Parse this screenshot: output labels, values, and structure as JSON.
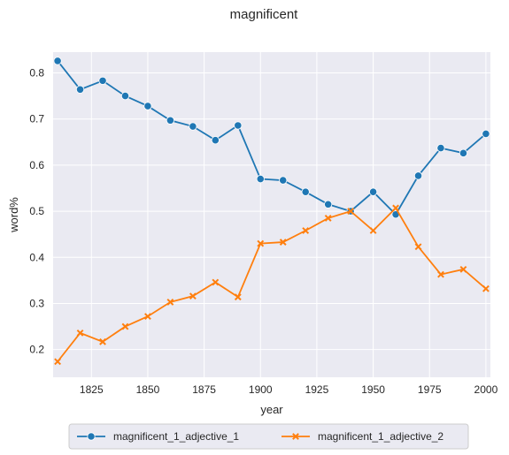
{
  "chart_data": {
    "type": "line",
    "title": "magnificent",
    "xlabel": "year",
    "ylabel": "word%",
    "xlim": [
      1808,
      2002
    ],
    "ylim": [
      0.14,
      0.845
    ],
    "x_ticks": [
      1825,
      1850,
      1875,
      1900,
      1925,
      1950,
      1975,
      2000
    ],
    "y_ticks": [
      0.2,
      0.3,
      0.4,
      0.5,
      0.6,
      0.7,
      0.8
    ],
    "grid": true,
    "background": "#eaeaf2",
    "legend_placement": "bottom-center",
    "x": [
      1810,
      1820,
      1830,
      1840,
      1850,
      1860,
      1870,
      1880,
      1890,
      1900,
      1910,
      1920,
      1930,
      1940,
      1950,
      1960,
      1970,
      1980,
      1990,
      2000
    ],
    "series": [
      {
        "name": "magnificent_1_adjective_1",
        "color": "#1f77b4",
        "marker": "circle",
        "values": [
          0.826,
          0.764,
          0.783,
          0.75,
          0.728,
          0.697,
          0.684,
          0.654,
          0.686,
          0.57,
          0.567,
          0.542,
          0.515,
          0.5,
          0.542,
          0.493,
          0.577,
          0.637,
          0.626,
          0.668
        ]
      },
      {
        "name": "magnificent_1_adjective_2",
        "color": "#ff7f0e",
        "marker": "x",
        "values": [
          0.174,
          0.236,
          0.217,
          0.25,
          0.272,
          0.303,
          0.316,
          0.346,
          0.314,
          0.43,
          0.433,
          0.458,
          0.485,
          0.5,
          0.458,
          0.507,
          0.423,
          0.363,
          0.374,
          0.332
        ]
      }
    ]
  }
}
